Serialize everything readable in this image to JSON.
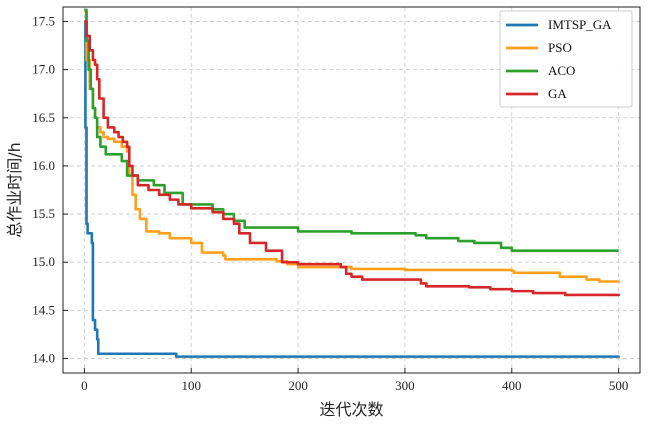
{
  "chart_data": {
    "type": "line",
    "title": "",
    "xlabel": "迭代次数",
    "ylabel": "总作业时间/h",
    "xlim": [
      -20,
      520
    ],
    "ylim": [
      13.85,
      17.65
    ],
    "xticks": [
      0,
      100,
      200,
      300,
      400,
      500
    ],
    "yticks": [
      14.0,
      14.5,
      15.0,
      15.5,
      16.0,
      16.5,
      17.0,
      17.5
    ],
    "ytick_labels": [
      "14.0",
      "14.5",
      "15.0",
      "15.5",
      "16.0",
      "16.5",
      "17.0",
      "17.5"
    ],
    "grid": true,
    "legend_position": "top-right",
    "series": [
      {
        "name": "IMTSP_GA",
        "color": "#1f77b4",
        "points": [
          [
            0,
            17.5
          ],
          [
            1,
            16.4
          ],
          [
            2,
            15.4
          ],
          [
            3,
            15.3
          ],
          [
            6,
            15.3
          ],
          [
            7,
            15.2
          ],
          [
            8,
            14.4
          ],
          [
            10,
            14.3
          ],
          [
            12,
            14.2
          ],
          [
            13,
            14.05
          ],
          [
            85,
            14.05
          ],
          [
            86,
            14.02
          ],
          [
            495,
            14.02
          ],
          [
            500,
            14.01
          ]
        ]
      },
      {
        "name": "PSO",
        "color": "#ff9f1c",
        "points": [
          [
            0,
            17.6
          ],
          [
            2,
            17.1
          ],
          [
            5,
            16.8
          ],
          [
            8,
            16.6
          ],
          [
            10,
            16.5
          ],
          [
            12,
            16.4
          ],
          [
            15,
            16.35
          ],
          [
            18,
            16.3
          ],
          [
            22,
            16.28
          ],
          [
            28,
            16.25
          ],
          [
            35,
            16.2
          ],
          [
            40,
            16.15
          ],
          [
            42,
            15.9
          ],
          [
            45,
            15.7
          ],
          [
            48,
            15.55
          ],
          [
            52,
            15.45
          ],
          [
            58,
            15.32
          ],
          [
            70,
            15.3
          ],
          [
            80,
            15.25
          ],
          [
            100,
            15.2
          ],
          [
            110,
            15.1
          ],
          [
            130,
            15.07
          ],
          [
            132,
            15.03
          ],
          [
            180,
            15.01
          ],
          [
            190,
            14.98
          ],
          [
            200,
            14.95
          ],
          [
            250,
            14.93
          ],
          [
            300,
            14.92
          ],
          [
            400,
            14.91
          ],
          [
            402,
            14.89
          ],
          [
            445,
            14.85
          ],
          [
            470,
            14.82
          ],
          [
            482,
            14.8
          ],
          [
            500,
            14.79
          ]
        ]
      },
      {
        "name": "ACO",
        "color": "#2ca02c",
        "points": [
          [
            0,
            17.62
          ],
          [
            2,
            17.3
          ],
          [
            4,
            17.0
          ],
          [
            6,
            16.8
          ],
          [
            8,
            16.6
          ],
          [
            10,
            16.5
          ],
          [
            12,
            16.3
          ],
          [
            15,
            16.2
          ],
          [
            20,
            16.12
          ],
          [
            30,
            16.12
          ],
          [
            35,
            16.05
          ],
          [
            40,
            15.9
          ],
          [
            50,
            15.85
          ],
          [
            60,
            15.85
          ],
          [
            65,
            15.8
          ],
          [
            75,
            15.72
          ],
          [
            90,
            15.72
          ],
          [
            92,
            15.6
          ],
          [
            120,
            15.55
          ],
          [
            130,
            15.5
          ],
          [
            140,
            15.43
          ],
          [
            150,
            15.36
          ],
          [
            180,
            15.36
          ],
          [
            200,
            15.32
          ],
          [
            250,
            15.3
          ],
          [
            310,
            15.28
          ],
          [
            320,
            15.25
          ],
          [
            350,
            15.22
          ],
          [
            365,
            15.2
          ],
          [
            390,
            15.15
          ],
          [
            400,
            15.12
          ],
          [
            500,
            15.12
          ]
        ]
      },
      {
        "name": "GA",
        "color": "#d62728",
        "points": [
          [
            0,
            17.5
          ],
          [
            2,
            17.35
          ],
          [
            5,
            17.2
          ],
          [
            8,
            17.1
          ],
          [
            10,
            17.05
          ],
          [
            12,
            16.9
          ],
          [
            14,
            16.7
          ],
          [
            18,
            16.5
          ],
          [
            22,
            16.4
          ],
          [
            28,
            16.35
          ],
          [
            32,
            16.3
          ],
          [
            36,
            16.25
          ],
          [
            40,
            16.2
          ],
          [
            42,
            16.0
          ],
          [
            45,
            15.9
          ],
          [
            50,
            15.8
          ],
          [
            60,
            15.75
          ],
          [
            70,
            15.7
          ],
          [
            80,
            15.65
          ],
          [
            88,
            15.6
          ],
          [
            100,
            15.56
          ],
          [
            120,
            15.52
          ],
          [
            130,
            15.45
          ],
          [
            140,
            15.4
          ],
          [
            145,
            15.3
          ],
          [
            155,
            15.2
          ],
          [
            170,
            15.12
          ],
          [
            185,
            15.0
          ],
          [
            200,
            14.98
          ],
          [
            240,
            14.95
          ],
          [
            245,
            14.88
          ],
          [
            250,
            14.85
          ],
          [
            260,
            14.82
          ],
          [
            300,
            14.82
          ],
          [
            315,
            14.78
          ],
          [
            320,
            14.75
          ],
          [
            360,
            14.74
          ],
          [
            380,
            14.72
          ],
          [
            400,
            14.7
          ],
          [
            420,
            14.68
          ],
          [
            450,
            14.66
          ],
          [
            500,
            14.65
          ]
        ]
      }
    ]
  }
}
